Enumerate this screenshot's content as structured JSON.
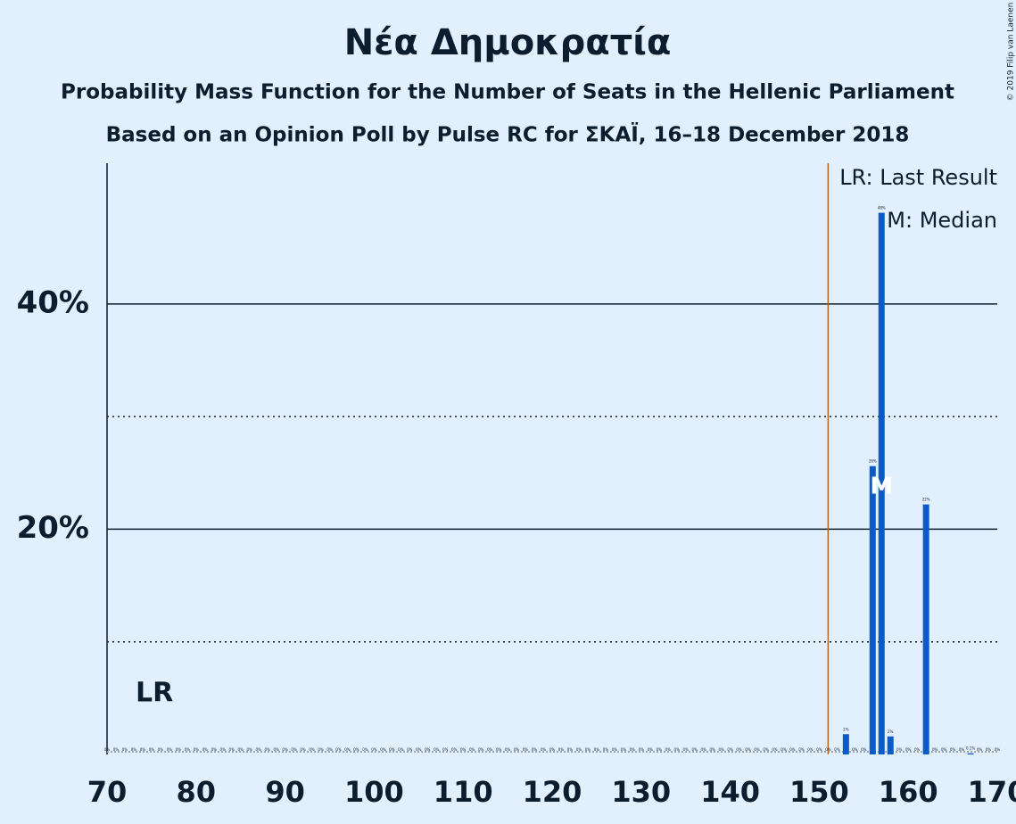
{
  "chart_data": {
    "type": "bar",
    "title": "Νέα Δημοκρατία",
    "subtitle": "Probability Mass Function for the Number of Seats in the Hellenic Parliament",
    "subtitle2": "Based on an Opinion Poll by Pulse RC for ΣΚΑΪ, 16–18 December 2018",
    "credit": "© 2019 Filip van Laenen",
    "legend": [
      "LR: Last Result",
      "M: Median"
    ],
    "last_result": 151,
    "last_result_label": "LR",
    "median": 157,
    "median_label": "M",
    "color": "#0a5bc6",
    "x": [
      70,
      71,
      72,
      73,
      74,
      75,
      76,
      77,
      78,
      79,
      80,
      81,
      82,
      83,
      84,
      85,
      86,
      87,
      88,
      89,
      90,
      91,
      92,
      93,
      94,
      95,
      96,
      97,
      98,
      99,
      100,
      101,
      102,
      103,
      104,
      105,
      106,
      107,
      108,
      109,
      110,
      111,
      112,
      113,
      114,
      115,
      116,
      117,
      118,
      119,
      120,
      121,
      122,
      123,
      124,
      125,
      126,
      127,
      128,
      129,
      130,
      131,
      132,
      133,
      134,
      135,
      136,
      137,
      138,
      139,
      140,
      141,
      142,
      143,
      144,
      145,
      146,
      147,
      148,
      149,
      150,
      151,
      152,
      153,
      154,
      155,
      156,
      157,
      158,
      159,
      160,
      161,
      162,
      163,
      164,
      165,
      166,
      167,
      168,
      169,
      170
    ],
    "values": [
      0,
      0,
      0,
      0,
      0,
      0,
      0,
      0,
      0,
      0,
      0,
      0,
      0,
      0,
      0,
      0,
      0,
      0,
      0,
      0,
      0,
      0,
      0,
      0,
      0,
      0,
      0,
      0,
      0,
      0,
      0,
      0,
      0,
      0,
      0,
      0,
      0,
      0,
      0,
      0,
      0,
      0,
      0,
      0,
      0,
      0,
      0,
      0,
      0,
      0,
      0,
      0,
      0,
      0,
      0,
      0,
      0,
      0,
      0,
      0,
      0,
      0,
      0,
      0,
      0,
      0,
      0,
      0,
      0,
      0,
      0,
      0,
      0,
      0,
      0,
      0,
      0,
      0,
      0,
      0,
      0,
      0,
      0,
      1.8,
      0,
      0,
      25.6,
      48.1,
      1.6,
      0,
      0,
      0,
      22.2,
      0,
      0,
      0,
      0,
      0.1,
      0,
      0,
      0
    ],
    "value_labels": [
      "0%",
      "0%",
      "0%",
      "0%",
      "0%",
      "0%",
      "0%",
      "0%",
      "0%",
      "0%",
      "0%",
      "0%",
      "0%",
      "0%",
      "0%",
      "0%",
      "0%",
      "0%",
      "0%",
      "0%",
      "0%",
      "0%",
      "0%",
      "0%",
      "0%",
      "0%",
      "0%",
      "0%",
      "0%",
      "0%",
      "0%",
      "0%",
      "0%",
      "0%",
      "0%",
      "0%",
      "0%",
      "0%",
      "0%",
      "0%",
      "0%",
      "0%",
      "0%",
      "0%",
      "0%",
      "0%",
      "0%",
      "0%",
      "0%",
      "0%",
      "0%",
      "0%",
      "0%",
      "0%",
      "0%",
      "0%",
      "0%",
      "0%",
      "0%",
      "0%",
      "0%",
      "0%",
      "0%",
      "0%",
      "0%",
      "0%",
      "0%",
      "0%",
      "0%",
      "0%",
      "0%",
      "0%",
      "0%",
      "0%",
      "0%",
      "0%",
      "0%",
      "0%",
      "0%",
      "0%",
      "0%",
      "0%",
      "0%",
      "2%",
      "0%",
      "0%",
      "26%",
      "48%",
      "2%",
      "0%",
      "0%",
      "0%",
      "22%",
      "0%",
      "0%",
      "0%",
      "0%",
      "0.1%",
      "0%",
      "0%",
      "0%"
    ],
    "xlim": [
      70,
      170
    ],
    "xticks": [
      70,
      80,
      90,
      100,
      110,
      120,
      130,
      140,
      150,
      160,
      170
    ],
    "ylim": [
      0,
      52.5
    ],
    "yticks": [
      {
        "value": 20,
        "label": "20%"
      },
      {
        "value": 40,
        "label": "40%"
      }
    ],
    "yminor": [
      10,
      30
    ]
  }
}
